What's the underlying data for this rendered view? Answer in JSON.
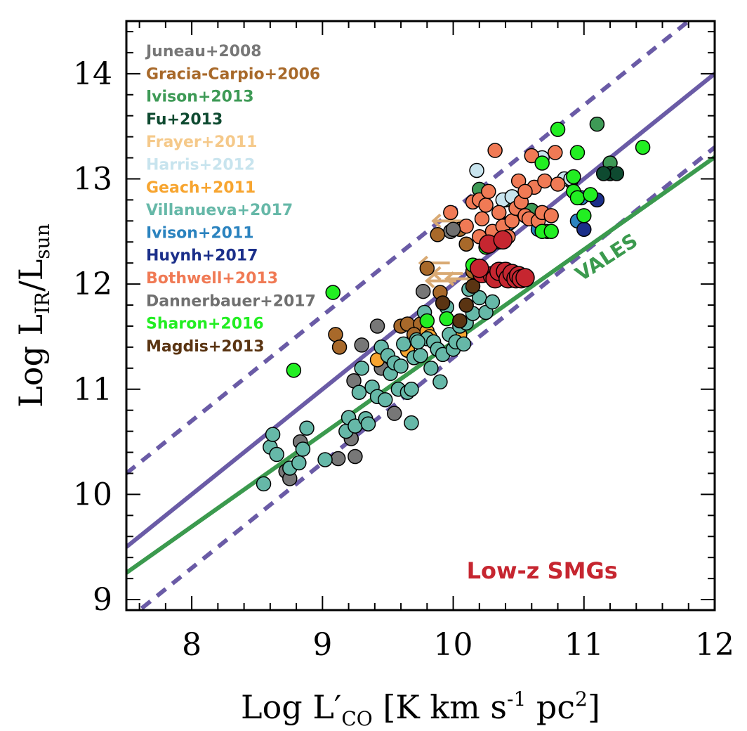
{
  "chart_data": {
    "type": "scatter",
    "title": "",
    "xlabel": {
      "prefix": "Log L′",
      "sub": "CO",
      "unit_a": " [K km s",
      "sup1": "-1",
      "unit_b": " pc",
      "sup2": "2",
      "unit_c": "]"
    },
    "ylabel": {
      "prefix": "Log L",
      "sub1": "IR",
      "mid": "/L",
      "sub2": "sun"
    },
    "xlim": [
      7.5,
      12
    ],
    "ylim": [
      8.9,
      14.5
    ],
    "xticks": [
      8,
      9,
      10,
      11,
      12
    ],
    "yticks": [
      9,
      10,
      11,
      12,
      13,
      14
    ],
    "xtick_labels": [
      "8",
      "9",
      "10",
      "11",
      "12"
    ],
    "ytick_labels": [
      "9",
      "10",
      "11",
      "12",
      "13",
      "14"
    ],
    "lines": [
      {
        "name": "fit",
        "style": "solid",
        "color": "#6a5ba6",
        "slope": 1.0,
        "intercept": 2.0
      },
      {
        "name": "fit-upper",
        "style": "dashed",
        "color": "#6a5ba6",
        "slope": 1.0,
        "intercept": 2.7
      },
      {
        "name": "fit-lower",
        "style": "dashed",
        "color": "#6a5ba6",
        "slope": 1.0,
        "intercept": 1.3
      },
      {
        "name": "VALES",
        "style": "solid",
        "color": "#3b9a4e",
        "slope": 0.878,
        "intercept": 2.67
      }
    ],
    "annotations": [
      {
        "text": "VALES",
        "color": "#3b9a4e",
        "x": 11.2,
        "y": 12.2,
        "rotation": 33
      },
      {
        "text": "Low-z SMGs",
        "color": "#c62630",
        "x": 10.68,
        "y": 9.2,
        "rotation": 0
      }
    ],
    "series": [
      {
        "name": "Juneau+2008",
        "color": "#777777",
        "points": [
          [
            8.72,
            10.22
          ],
          [
            8.75,
            10.15
          ],
          [
            8.83,
            10.5
          ],
          [
            9.12,
            10.34
          ],
          [
            9.25,
            10.36
          ],
          [
            9.22,
            10.53
          ],
          [
            9.24,
            11.08
          ],
          [
            9.3,
            11.42
          ],
          [
            9.42,
            11.6
          ],
          [
            9.55,
            10.77
          ],
          [
            9.77,
            11.93
          ],
          [
            9.98,
            12.5
          ],
          [
            9.45,
            11.2
          ]
        ]
      },
      {
        "name": "Gracia-Carpio+2006",
        "color": "#a8692a",
        "points": [
          [
            9.1,
            11.52
          ],
          [
            9.13,
            11.4
          ],
          [
            9.6,
            11.6
          ],
          [
            9.65,
            11.62
          ],
          [
            9.75,
            11.62
          ],
          [
            9.8,
            12.15
          ],
          [
            9.88,
            12.47
          ],
          [
            9.9,
            11.92
          ],
          [
            10.05,
            12.52
          ],
          [
            10.1,
            12.38
          ],
          [
            10.15,
            12.12
          ],
          [
            9.7,
            11.52
          ]
        ]
      },
      {
        "name": "Ivison+2013",
        "color": "#3e9a56",
        "points": [
          [
            10.2,
            12.9
          ],
          [
            10.4,
            12.8
          ],
          [
            10.6,
            12.7
          ],
          [
            11.1,
            13.52
          ],
          [
            11.2,
            13.15
          ],
          [
            10.9,
            12.98
          ]
        ]
      },
      {
        "name": "Fu+2013",
        "color": "#0e4a30",
        "points": [
          [
            11.2,
            13.05
          ],
          [
            11.25,
            13.05
          ],
          [
            11.15,
            13.05
          ]
        ]
      },
      {
        "name": "Frayer+2011",
        "color": "#f5c98a",
        "points": []
      },
      {
        "name": "Harris+2012",
        "color": "#c8e4ee",
        "points": [
          [
            10.18,
            13.08
          ],
          [
            10.38,
            12.8
          ],
          [
            10.45,
            12.83
          ],
          [
            10.68,
            13.2
          ],
          [
            10.85,
            13.0
          ],
          [
            10.9,
            13.0
          ]
        ]
      },
      {
        "name": "Geach+2011",
        "color": "#f7a530",
        "points": [
          [
            9.42,
            11.28
          ],
          [
            9.65,
            11.37
          ],
          [
            9.8,
            11.55
          ],
          [
            9.82,
            11.5
          ],
          [
            10.05,
            11.52
          ]
        ]
      },
      {
        "name": "Villanueva+2017",
        "color": "#66b8a8",
        "points": [
          [
            8.55,
            10.1
          ],
          [
            8.6,
            10.45
          ],
          [
            8.62,
            10.57
          ],
          [
            8.65,
            10.38
          ],
          [
            8.75,
            10.25
          ],
          [
            8.82,
            10.3
          ],
          [
            8.85,
            10.43
          ],
          [
            8.88,
            10.63
          ],
          [
            9.02,
            10.33
          ],
          [
            9.18,
            10.6
          ],
          [
            9.2,
            10.73
          ],
          [
            9.25,
            10.65
          ],
          [
            9.28,
            10.97
          ],
          [
            9.3,
            11.2
          ],
          [
            9.33,
            10.72
          ],
          [
            9.35,
            10.67
          ],
          [
            9.38,
            11.02
          ],
          [
            9.42,
            10.93
          ],
          [
            9.45,
            11.4
          ],
          [
            9.48,
            10.9
          ],
          [
            9.5,
            11.32
          ],
          [
            9.52,
            11.15
          ],
          [
            9.55,
            11.25
          ],
          [
            9.58,
            11.0
          ],
          [
            9.6,
            11.22
          ],
          [
            9.62,
            11.43
          ],
          [
            9.65,
            10.97
          ],
          [
            9.68,
            11.0
          ],
          [
            9.68,
            10.68
          ],
          [
            9.7,
            11.3
          ],
          [
            9.72,
            11.47
          ],
          [
            9.75,
            11.32
          ],
          [
            9.78,
            11.73
          ],
          [
            9.8,
            11.48
          ],
          [
            9.83,
            11.2
          ],
          [
            9.85,
            11.45
          ],
          [
            9.88,
            11.38
          ],
          [
            9.9,
            11.07
          ],
          [
            9.92,
            11.33
          ],
          [
            9.95,
            11.78
          ],
          [
            9.97,
            11.52
          ],
          [
            10.0,
            11.38
          ],
          [
            10.02,
            11.45
          ],
          [
            10.05,
            11.6
          ],
          [
            10.08,
            11.43
          ],
          [
            10.1,
            11.63
          ],
          [
            10.15,
            11.72
          ],
          [
            10.2,
            11.87
          ],
          [
            10.25,
            11.73
          ],
          [
            10.3,
            11.83
          ],
          [
            10.12,
            11.95
          ],
          [
            9.73,
            11.45
          ]
        ]
      },
      {
        "name": "Ivison+2011",
        "color": "#2b83bf",
        "points": [
          [
            10.43,
            12.58
          ],
          [
            10.65,
            12.52
          ],
          [
            10.95,
            12.6
          ],
          [
            10.98,
            12.82
          ]
        ]
      },
      {
        "name": "Huynh+2017",
        "color": "#1b2f8a",
        "points": [
          [
            11.1,
            12.8
          ],
          [
            11.0,
            12.52
          ]
        ]
      },
      {
        "name": "Bothwell+2013",
        "color": "#f07a55",
        "points": [
          [
            9.98,
            12.68
          ],
          [
            10.1,
            12.55
          ],
          [
            10.15,
            12.78
          ],
          [
            10.2,
            12.8
          ],
          [
            10.22,
            12.62
          ],
          [
            10.25,
            12.75
          ],
          [
            10.27,
            12.88
          ],
          [
            10.3,
            12.5
          ],
          [
            10.32,
            13.27
          ],
          [
            10.35,
            12.68
          ],
          [
            10.38,
            12.55
          ],
          [
            10.42,
            12.45
          ],
          [
            10.45,
            12.6
          ],
          [
            10.48,
            12.72
          ],
          [
            10.5,
            12.98
          ],
          [
            10.52,
            12.78
          ],
          [
            10.55,
            12.65
          ],
          [
            10.58,
            12.62
          ],
          [
            10.6,
            13.22
          ],
          [
            10.62,
            12.92
          ],
          [
            10.65,
            12.6
          ],
          [
            10.68,
            12.68
          ],
          [
            10.7,
            12.98
          ],
          [
            10.72,
            12.5
          ],
          [
            10.75,
            12.65
          ],
          [
            10.78,
            13.25
          ],
          [
            10.8,
            12.95
          ],
          [
            10.55,
            12.88
          ],
          [
            10.2,
            12.45
          ]
        ]
      },
      {
        "name": "Dannerbauer+2017",
        "color": "#707070",
        "points": [
          [
            10.0,
            12.52
          ]
        ]
      },
      {
        "name": "Sharon+2016",
        "color": "#22ee22",
        "points": [
          [
            8.78,
            11.18
          ],
          [
            9.08,
            11.92
          ],
          [
            9.8,
            11.65
          ],
          [
            9.95,
            11.67
          ],
          [
            10.15,
            12.18
          ],
          [
            10.25,
            12.35
          ],
          [
            10.68,
            12.5
          ],
          [
            10.75,
            12.5
          ],
          [
            10.8,
            13.47
          ],
          [
            10.92,
            12.88
          ],
          [
            10.95,
            12.82
          ],
          [
            11.0,
            12.65
          ],
          [
            11.05,
            12.85
          ],
          [
            11.45,
            13.3
          ],
          [
            10.95,
            13.25
          ],
          [
            10.68,
            13.15
          ],
          [
            10.92,
            13.02
          ],
          [
            10.35,
            12.4
          ]
        ]
      },
      {
        "name": "Magdis+2013",
        "color": "#5a3412",
        "points": [
          [
            9.92,
            11.82
          ],
          [
            10.05,
            11.65
          ],
          [
            10.1,
            11.8
          ],
          [
            10.15,
            11.98
          ]
        ]
      },
      {
        "name": "Low-z SMGs",
        "color": "#c62630",
        "legend": false,
        "points": [
          [
            10.22,
            12.1
          ],
          [
            10.27,
            12.38
          ],
          [
            10.3,
            12.08
          ],
          [
            10.32,
            12.05
          ],
          [
            10.35,
            12.12
          ],
          [
            10.38,
            12.42
          ],
          [
            10.4,
            12.12
          ],
          [
            10.42,
            12.05
          ],
          [
            10.45,
            12.1
          ],
          [
            10.48,
            12.05
          ],
          [
            10.5,
            12.08
          ],
          [
            10.52,
            12.05
          ],
          [
            10.55,
            12.06
          ],
          [
            10.2,
            12.15
          ]
        ]
      }
    ],
    "upper_limits": [
      {
        "series": "Frayer+2011",
        "color": "#d9aa74",
        "points": [
          [
            10.02,
            12.6
          ],
          [
            9.92,
            12.2
          ],
          [
            10.02,
            12.1
          ],
          [
            10.12,
            12.05
          ],
          [
            10.28,
            12.05
          ],
          [
            9.97,
            12.03
          ]
        ]
      }
    ]
  }
}
